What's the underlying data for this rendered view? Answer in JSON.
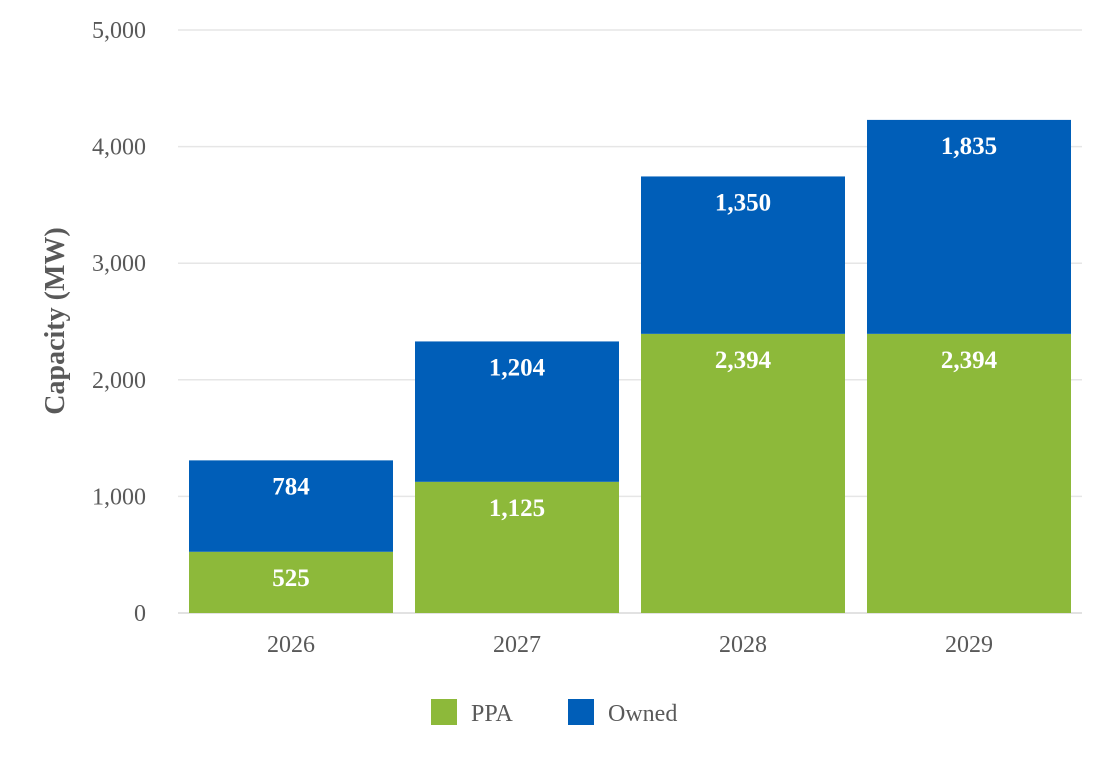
{
  "chart_data": {
    "type": "bar",
    "stacked": true,
    "categories": [
      "2026",
      "2027",
      "2028",
      "2029"
    ],
    "series": [
      {
        "name": "PPA",
        "color": "#8DB93A",
        "values": [
          525,
          1125,
          2394,
          2394
        ],
        "labels": [
          "525",
          "1,125",
          "2,394",
          "2,394"
        ]
      },
      {
        "name": "Owned",
        "color": "#005EB8",
        "values": [
          784,
          1204,
          1350,
          1835
        ],
        "labels": [
          "784",
          "1,204",
          "1,350",
          "1,835"
        ]
      }
    ],
    "ylabel": "Capacity (MW)",
    "ylim": [
      0,
      5000
    ],
    "yticks": [
      0,
      1000,
      2000,
      3000,
      4000,
      5000
    ],
    "ytick_labels": [
      "0",
      "1,000",
      "2,000",
      "3,000",
      "4,000",
      "5,000"
    ],
    "grid": true,
    "legend_position": "bottom-center"
  }
}
